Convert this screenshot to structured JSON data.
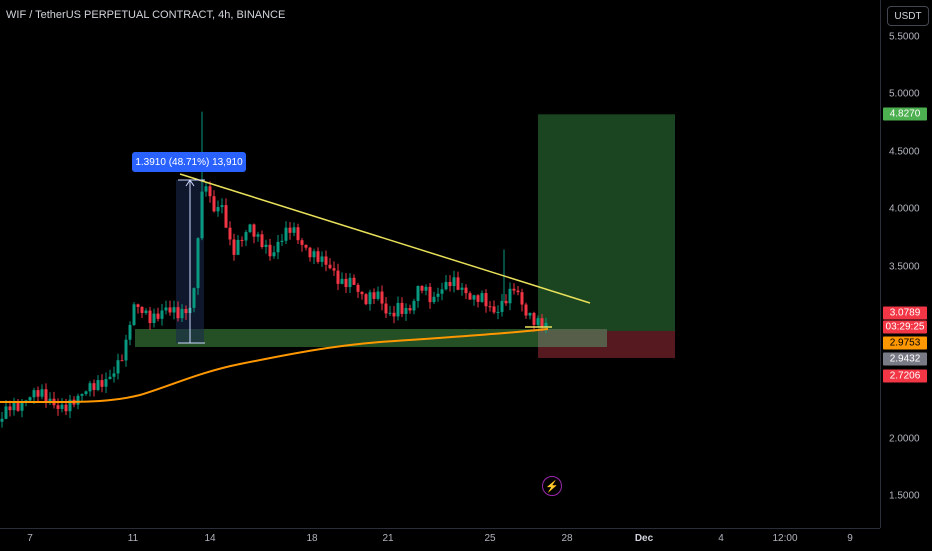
{
  "header": {
    "title": "WIF / TetherUS PERPETUAL CONTRACT, 4h, BINANCE"
  },
  "price_axis": {
    "currency_button": "USDT",
    "ticks": [
      {
        "label": "5.5000",
        "value": 5.5
      },
      {
        "label": "5.0000",
        "value": 5.0
      },
      {
        "label": "4.5000",
        "value": 4.5
      },
      {
        "label": "4.0000",
        "value": 4.0
      },
      {
        "label": "3.5000",
        "value": 3.5
      },
      {
        "label": "2.0000",
        "value": 2.0
      },
      {
        "label": "1.5000",
        "value": 1.5
      }
    ],
    "labels": {
      "target": {
        "text": "4.8270",
        "value": 4.827,
        "color": "#4caf50"
      },
      "last_price": {
        "text": "3.0789",
        "value": 3.0789,
        "color": "#f23645"
      },
      "countdown": {
        "text": "03:29:25",
        "color": "#f23645"
      },
      "ma": {
        "text": "2.9753",
        "value": 2.9753,
        "color": "#ff9800"
      },
      "entry": {
        "text": "2.9432",
        "value": 2.9432,
        "color": "#787b86"
      },
      "stop": {
        "text": "2.7206",
        "value": 2.7206,
        "color": "#f23645"
      }
    }
  },
  "time_axis": {
    "ticks": [
      {
        "label": "7",
        "bold": false
      },
      {
        "label": "11",
        "bold": false
      },
      {
        "label": "14",
        "bold": false
      },
      {
        "label": "18",
        "bold": false
      },
      {
        "label": "21",
        "bold": false
      },
      {
        "label": "25",
        "bold": false
      },
      {
        "label": "28",
        "bold": false
      },
      {
        "label": "Dec",
        "bold": true
      },
      {
        "label": "4",
        "bold": false
      },
      {
        "label": "12:00",
        "bold": false
      },
      {
        "label": "9",
        "bold": false
      }
    ]
  },
  "measure": {
    "label": "1.3910 (48.71%) 13,910"
  },
  "colors": {
    "up": "#089981",
    "down": "#f23645",
    "ma": "#ff9800",
    "trendline": "#e8e05a",
    "target_zone": "#1e4d24",
    "stop_zone": "#5c1a22",
    "support_zone": "#2b5d2c",
    "measure": "#2962ff"
  },
  "icons": {
    "bolt": "lightning-icon"
  }
}
